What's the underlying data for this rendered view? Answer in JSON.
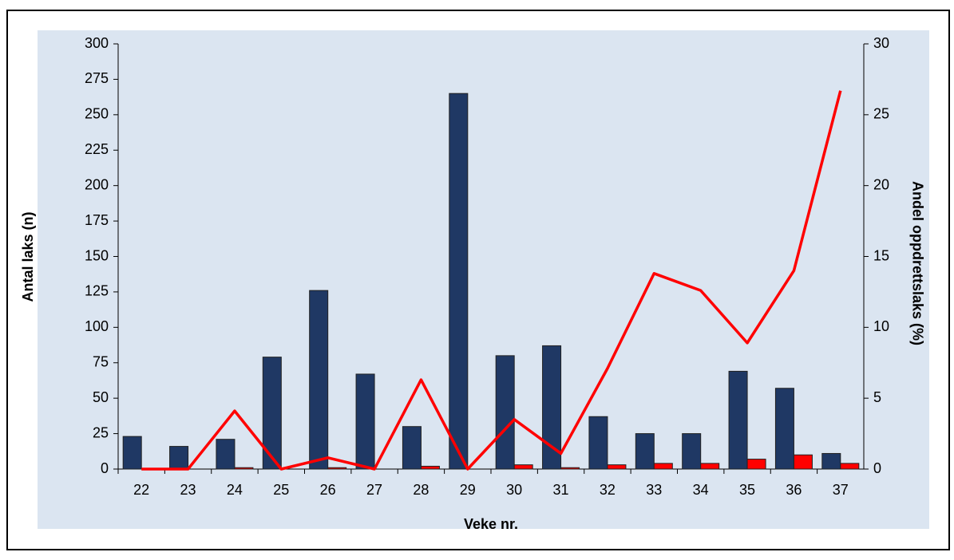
{
  "chart_data": {
    "type": "bar",
    "categories": [
      "22",
      "23",
      "24",
      "25",
      "26",
      "27",
      "28",
      "29",
      "30",
      "31",
      "32",
      "33",
      "34",
      "35",
      "36",
      "37"
    ],
    "series": [
      {
        "type": "bar",
        "color": "#1f3864",
        "values": [
          23,
          16,
          21,
          79,
          126,
          67,
          30,
          265,
          80,
          87,
          37,
          25,
          25,
          69,
          57,
          11
        ]
      },
      {
        "type": "bar",
        "color": "#ff0000",
        "values": [
          0,
          0,
          1,
          0,
          1,
          0,
          2,
          0,
          3,
          1,
          3,
          4,
          4,
          7,
          10,
          4
        ]
      },
      {
        "type": "line",
        "axis": "y2",
        "color": "#ff0000",
        "values": [
          0,
          0,
          4.1,
          0,
          0.8,
          0,
          6.3,
          0,
          3.5,
          1.1,
          7.1,
          13.8,
          12.6,
          8.9,
          14,
          26.7
        ]
      }
    ],
    "ylabel": "Antal laks (n)",
    "y2label": "Andel oppdrettslaks (%)",
    "xlabel": "Veke nr.",
    "ylim": [
      0,
      300
    ],
    "yticks": [
      0,
      25,
      50,
      75,
      100,
      125,
      150,
      175,
      200,
      225,
      250,
      275,
      300
    ],
    "y2lim": [
      0,
      30
    ],
    "y2ticks": [
      0,
      5,
      10,
      15,
      20,
      25,
      30
    ],
    "grid": false
  }
}
